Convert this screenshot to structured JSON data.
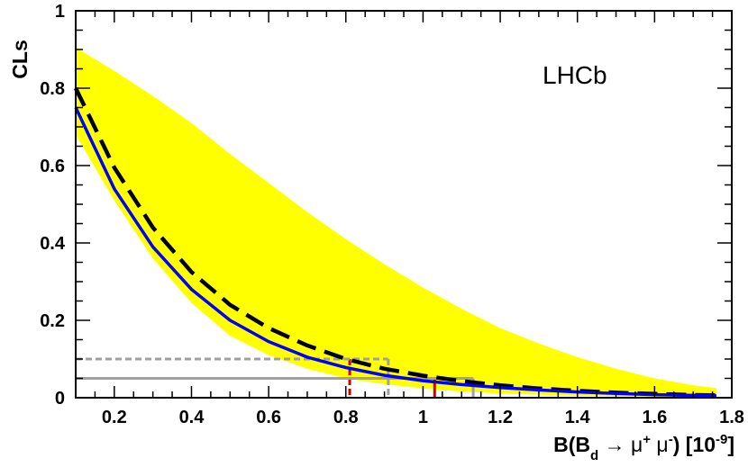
{
  "chart_data": {
    "type": "line",
    "title": "",
    "experiment_label": "LHCb",
    "ylabel": "CLs",
    "xlabel": {
      "prefix": "B(B",
      "sub": "d",
      "arrow": " → μ",
      "sup1": "+",
      "mid": " μ",
      "sup2": "-",
      "suffix_open": ") [10",
      "exp": "-9",
      "suffix_close": "]"
    },
    "xlim": [
      0.1,
      1.8
    ],
    "ylim": [
      0,
      1
    ],
    "xticks": [
      {
        "v": 0.2,
        "label": "0.2"
      },
      {
        "v": 0.4,
        "label": "0.4"
      },
      {
        "v": 0.6,
        "label": "0.6"
      },
      {
        "v": 0.8,
        "label": "0.8"
      },
      {
        "v": 1.0,
        "label": "1"
      },
      {
        "v": 1.2,
        "label": "1.2"
      },
      {
        "v": 1.4,
        "label": "1.4"
      },
      {
        "v": 1.6,
        "label": "1.6"
      },
      {
        "v": 1.8,
        "label": "1.8"
      }
    ],
    "yticks": [
      {
        "v": 0,
        "label": "0"
      },
      {
        "v": 0.2,
        "label": "0.2"
      },
      {
        "v": 0.4,
        "label": "0.4"
      },
      {
        "v": 0.6,
        "label": "0.6"
      },
      {
        "v": 0.8,
        "label": "0.8"
      },
      {
        "v": 1,
        "label": "1"
      }
    ],
    "x_minor_step": 0.05,
    "y_minor_step": 0.05,
    "band": {
      "color": "#ffff00",
      "x": [
        0.1,
        0.2,
        0.3,
        0.4,
        0.5,
        0.6,
        0.7,
        0.8,
        0.9,
        1.0,
        1.1,
        1.2,
        1.3,
        1.4,
        1.5,
        1.6,
        1.7,
        1.76
      ],
      "upper": [
        0.905,
        0.845,
        0.78,
        0.71,
        0.63,
        0.555,
        0.48,
        0.41,
        0.345,
        0.285,
        0.23,
        0.18,
        0.14,
        0.105,
        0.075,
        0.05,
        0.032,
        0.025
      ],
      "lower": [
        0.68,
        0.51,
        0.36,
        0.245,
        0.16,
        0.11,
        0.075,
        0.05,
        0.035,
        0.024,
        0.016,
        0.011,
        0.008,
        0.005,
        0.003,
        0.002,
        0.001,
        0.001
      ]
    },
    "series": [
      {
        "key": "expected",
        "color": "#000000",
        "style": "dashed",
        "x": [
          0.1,
          0.2,
          0.3,
          0.4,
          0.5,
          0.6,
          0.7,
          0.8,
          0.9,
          1.0,
          1.1,
          1.2,
          1.3,
          1.4,
          1.5,
          1.6,
          1.7,
          1.76
        ],
        "y": [
          0.8,
          0.595,
          0.44,
          0.325,
          0.24,
          0.18,
          0.135,
          0.1,
          0.075,
          0.057,
          0.043,
          0.032,
          0.024,
          0.018,
          0.013,
          0.01,
          0.007,
          0.006
        ]
      },
      {
        "key": "observed",
        "color": "#0000ff",
        "style": "solid",
        "x": [
          0.1,
          0.2,
          0.3,
          0.4,
          0.5,
          0.6,
          0.7,
          0.8,
          0.9,
          1.0,
          1.1,
          1.2,
          1.3,
          1.4,
          1.5,
          1.6,
          1.7,
          1.76
        ],
        "y": [
          0.75,
          0.54,
          0.39,
          0.28,
          0.2,
          0.145,
          0.105,
          0.078,
          0.058,
          0.044,
          0.034,
          0.026,
          0.02,
          0.015,
          0.011,
          0.008,
          0.006,
          0.005
        ]
      }
    ],
    "limit_markers": [
      {
        "cl": 0.1,
        "x": 0.81,
        "color": "#cc0000",
        "style": "dashed"
      },
      {
        "cl": 0.1,
        "x": 0.91,
        "color": "#a0a0a0",
        "style": "dashed"
      },
      {
        "cl": 0.05,
        "x": 1.03,
        "color": "#cc0000",
        "style": "solid"
      },
      {
        "cl": 0.05,
        "x": 1.13,
        "color": "#a0a0a0",
        "style": "solid"
      }
    ]
  }
}
